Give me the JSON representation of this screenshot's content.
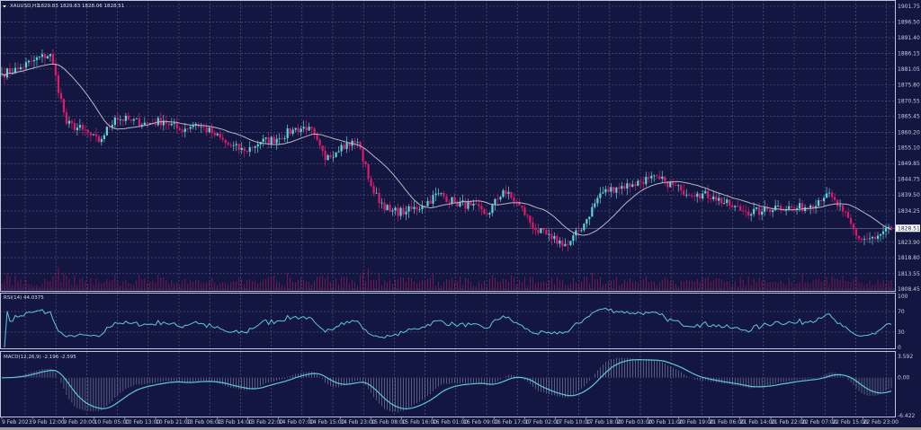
{
  "header": {
    "symbol": "XAUUSD,H1",
    "ohlc": "1829.83 1829.83 1828.06 1828.51"
  },
  "colors": {
    "background": "#131640",
    "bull": "#5fd3d8",
    "bear": "#e0196a",
    "ma": "#b8b8c4",
    "grid": "#5a5f85",
    "indicator": "#5fc8d8",
    "volume": "#a0195a"
  },
  "chart_data": [
    {
      "type": "candlestick",
      "panel": "main",
      "price_axis_ticks": [
        "1901.75",
        "1896.50",
        "1891.40",
        "1886.15",
        "1881.05",
        "1875.80",
        "1870.55",
        "1865.45",
        "1860.20",
        "1855.10",
        "1849.85",
        "1844.75",
        "1839.50",
        "1834.25",
        "1823.90",
        "1818.80",
        "1813.55",
        "1808.45"
      ],
      "ylim": [
        1808.45,
        1901.75
      ],
      "current_price": "1828.51",
      "sampled_closes_every_6_bars": [
        1879.5,
        1881,
        1884,
        1886,
        1863,
        1861,
        1857,
        1865,
        1864,
        1863,
        1864,
        1861,
        1863,
        1860,
        1856,
        1854,
        1857,
        1858,
        1861,
        1862,
        1851,
        1856,
        1857,
        1840,
        1834,
        1834,
        1836,
        1840,
        1837,
        1836,
        1833,
        1841,
        1836,
        1828,
        1825,
        1823,
        1830,
        1840,
        1842,
        1843,
        1845,
        1844,
        1841,
        1840,
        1839,
        1836,
        1834,
        1834,
        1836,
        1835,
        1836,
        1840,
        1834,
        1825,
        1825,
        1828.51
      ],
      "moving_average": "on",
      "volume": "on",
      "grid": true,
      "time_axis_ticks": [
        "9 Feb 2023",
        "9 Feb 12:00",
        "9 Feb 20:00",
        "10 Feb 05:00",
        "10 Feb 13:00",
        "10 Feb 21:00",
        "13 Feb 06:00",
        "13 Feb 14:00",
        "13 Feb 22:00",
        "14 Feb 07:00",
        "14 Feb 15:00",
        "14 Feb 23:00",
        "15 Feb 08:00",
        "15 Feb 16:00",
        "16 Feb 01:00",
        "16 Feb 09:00",
        "16 Feb 17:00",
        "17 Feb 02:00",
        "17 Feb 10:00",
        "17 Feb 18:00",
        "20 Feb 03:00",
        "20 Feb 11:00",
        "20 Feb 19:00",
        "21 Feb 06:00",
        "21 Feb 14:00",
        "21 Feb 22:00",
        "22 Feb 07:00",
        "22 Feb 15:00",
        "22 Feb 23:00"
      ]
    },
    {
      "type": "line",
      "panel": "rsi",
      "title": "RSI(14) 44.0375",
      "ticks": [
        "100",
        "70",
        "30",
        "0"
      ],
      "ylim": [
        0,
        100
      ]
    },
    {
      "type": "line+histogram",
      "panel": "macd",
      "title": "MACD(12,26,9) -2.196 -2.595",
      "ticks": [
        "3.592",
        "0.00",
        "-6.422"
      ],
      "ylim": [
        -6.422,
        3.592
      ]
    }
  ]
}
